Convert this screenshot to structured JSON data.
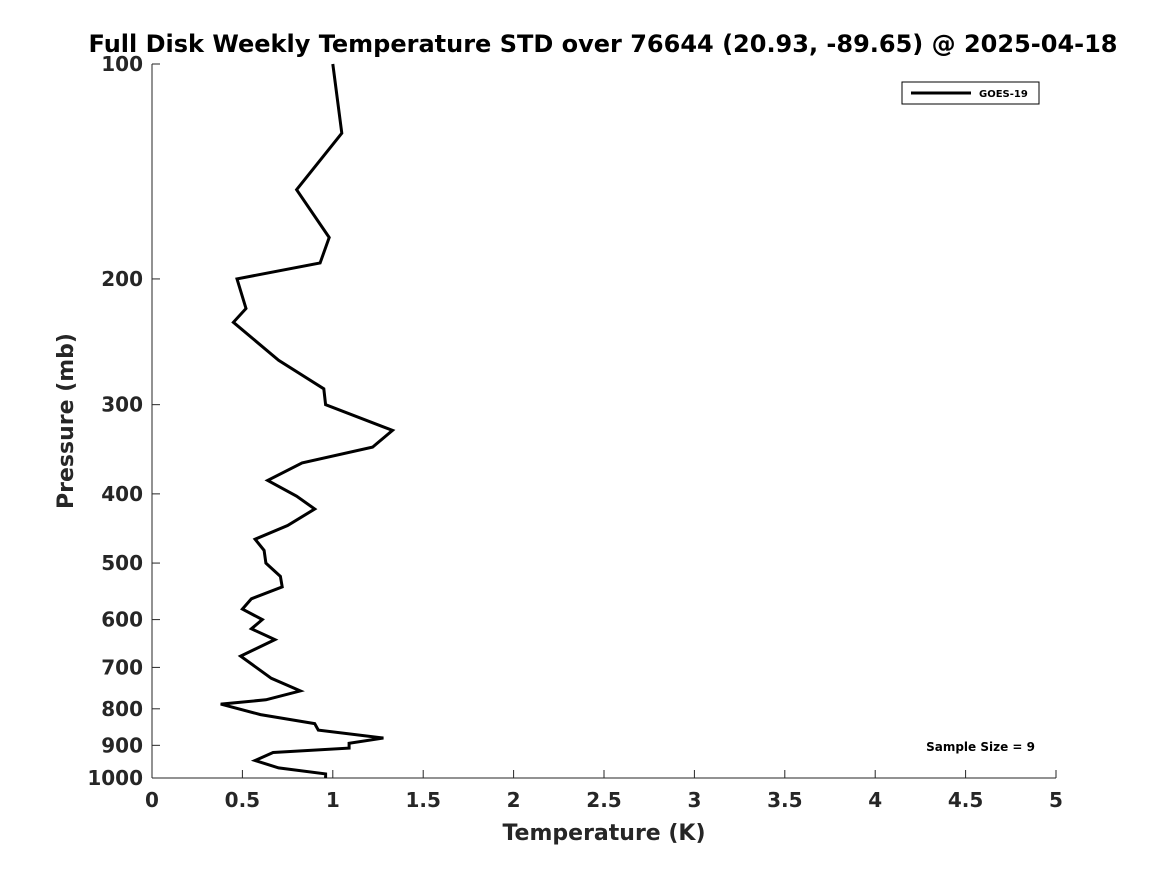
{
  "chart_data": {
    "type": "line",
    "title": "Full Disk Weekly Temperature STD over 76644 (20.93, -89.65) @ 2025-04-18",
    "xlabel": "Temperature (K)",
    "ylabel": "Pressure (mb)",
    "xlim": [
      0,
      5
    ],
    "ylim": [
      1000,
      100
    ],
    "yscale": "log",
    "xticks": [
      0,
      0.5,
      1,
      1.5,
      2,
      2.5,
      3,
      3.5,
      4,
      4.5,
      5
    ],
    "xtick_labels": [
      "0",
      "0.5",
      "1",
      "1.5",
      "2",
      "2.5",
      "3",
      "3.5",
      "4",
      "4.5",
      "5"
    ],
    "yticks": [
      100,
      200,
      300,
      400,
      500,
      600,
      700,
      800,
      900,
      1000
    ],
    "ytick_labels": [
      "100",
      "200",
      "300",
      "400",
      "500",
      "600",
      "700",
      "800",
      "900",
      "1000"
    ],
    "grid": false,
    "legend_position": "top-right",
    "series": [
      {
        "name": "GOES-19",
        "color": "#000000",
        "points": [
          [
            1.0,
            100
          ],
          [
            1.05,
            125
          ],
          [
            0.8,
            150
          ],
          [
            0.98,
            175
          ],
          [
            0.93,
            190
          ],
          [
            0.47,
            200
          ],
          [
            0.52,
            220
          ],
          [
            0.45,
            230
          ],
          [
            0.7,
            260
          ],
          [
            0.95,
            285
          ],
          [
            0.96,
            300
          ],
          [
            1.33,
            326
          ],
          [
            1.22,
            344
          ],
          [
            0.83,
            362
          ],
          [
            0.64,
            383
          ],
          [
            0.8,
            403
          ],
          [
            0.9,
            420
          ],
          [
            0.75,
            443
          ],
          [
            0.57,
            463
          ],
          [
            0.62,
            480
          ],
          [
            0.63,
            500
          ],
          [
            0.71,
            522
          ],
          [
            0.72,
            540
          ],
          [
            0.55,
            561
          ],
          [
            0.5,
            580
          ],
          [
            0.61,
            600
          ],
          [
            0.55,
            618
          ],
          [
            0.68,
            640
          ],
          [
            0.49,
            675
          ],
          [
            0.66,
            725
          ],
          [
            0.82,
            755
          ],
          [
            0.63,
            777
          ],
          [
            0.38,
            788
          ],
          [
            0.6,
            815
          ],
          [
            0.9,
            839
          ],
          [
            0.92,
            857
          ],
          [
            1.28,
            879
          ],
          [
            1.09,
            894
          ],
          [
            1.09,
            908
          ],
          [
            0.67,
            921
          ],
          [
            0.57,
            945
          ],
          [
            0.7,
            968
          ],
          [
            0.96,
            987
          ],
          [
            0.96,
            1000
          ]
        ]
      }
    ],
    "annotations": [
      {
        "text": "Sample Size = 9",
        "position": "bottom-right"
      }
    ]
  }
}
